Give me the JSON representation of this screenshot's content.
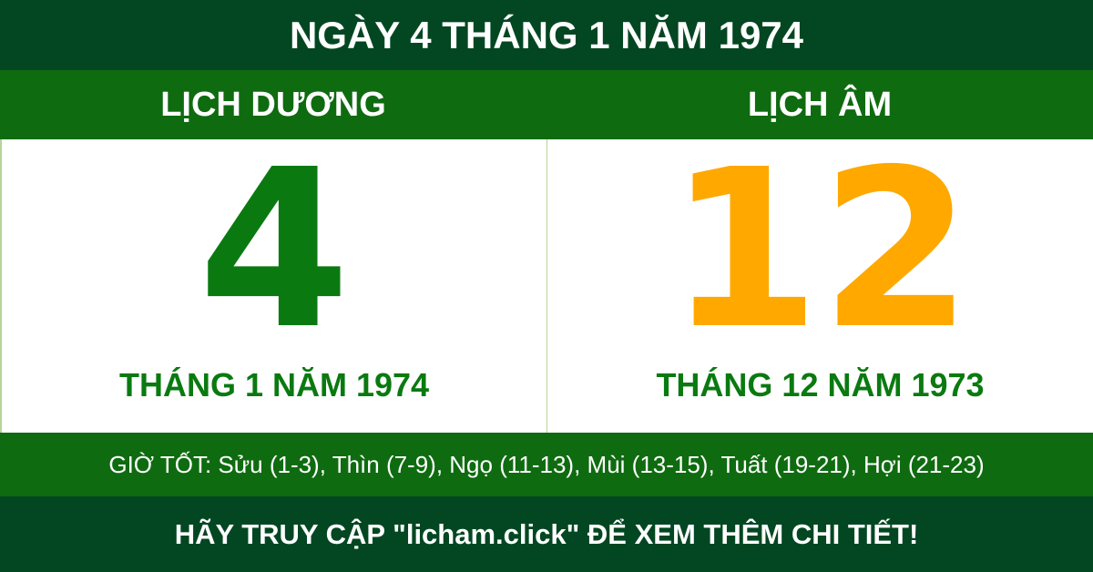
{
  "title": "NGÀY 4 THÁNG 1 NĂM 1974",
  "solar": {
    "label": "LỊCH DƯƠNG",
    "day": "4",
    "month_year": "THÁNG 1 NĂM 1974",
    "color": "#0a7a10"
  },
  "lunar": {
    "label": "LỊCH ÂM",
    "day": "12",
    "month_year": "THÁNG 12 NĂM 1973",
    "color": "#ffa800"
  },
  "good_hours": "GIỜ TỐT: Sửu (1-3), Thìn (7-9), Ngọ (11-13), Mùi (13-15), Tuất (19-21), Hợi (21-23)",
  "footer": "HÃY TRUY CẬP \"licham.click\" ĐỂ XEM THÊM CHI TIẾT!",
  "colors": {
    "dark_green": "#034722",
    "green": "#0f6b10"
  }
}
